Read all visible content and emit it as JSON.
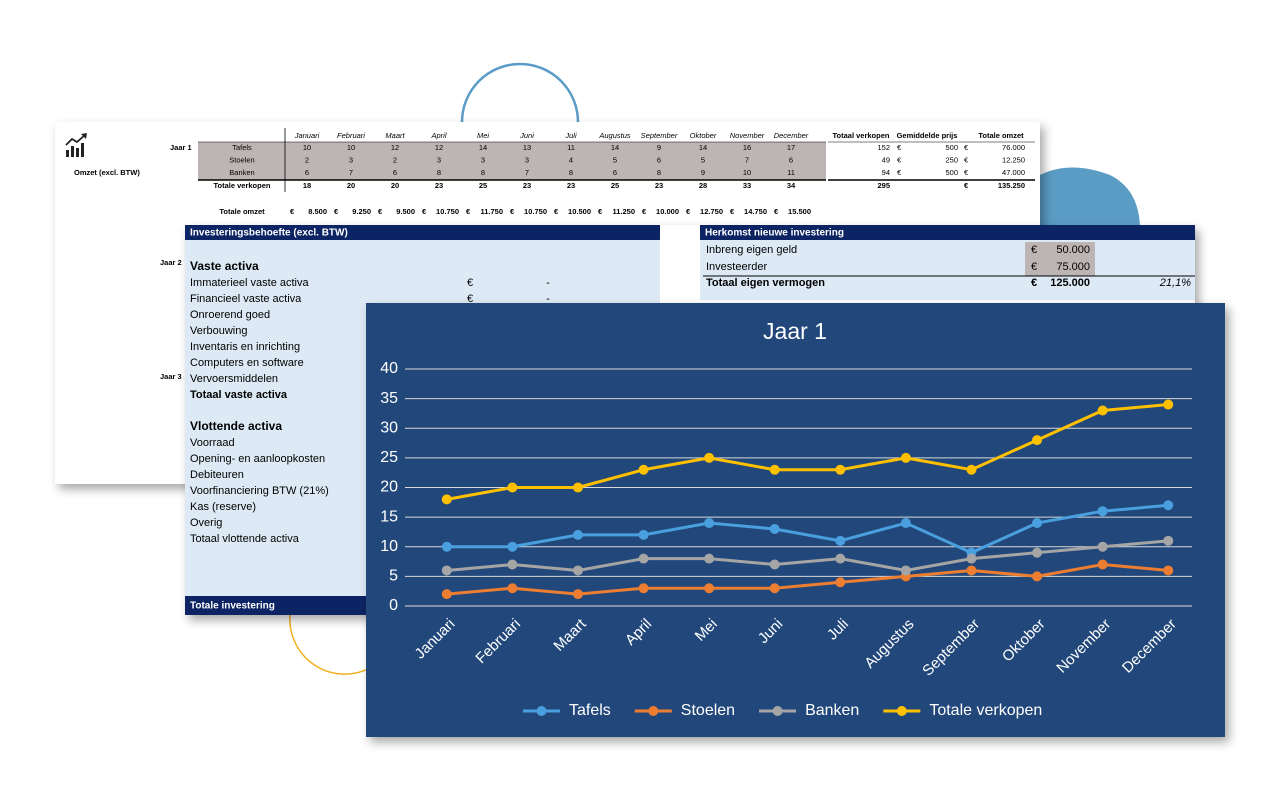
{
  "currency": "€",
  "sheet": {
    "year": "Jaar 1",
    "section": "Omzet (excl. BTW)",
    "other_years": [
      "Jaar 2",
      "Jaar 3"
    ],
    "revenue_label": "Totale omzet",
    "monthly_revenue": [
      "8.500",
      "9.250",
      "9.500",
      "10.750",
      "11.750",
      "10.750",
      "10.500",
      "11.250",
      "10.000",
      "12.750",
      "14.750",
      "15.500"
    ],
    "summary": {
      "headers": [
        "Totaal verkopen",
        "Gemiddelde prijs",
        "Totale omzet"
      ],
      "rows": [
        [
          "152",
          "500",
          "76.000"
        ],
        [
          "49",
          "250",
          "12.250"
        ],
        [
          "94",
          "500",
          "47.000"
        ]
      ],
      "total": [
        "295",
        "135.250"
      ]
    }
  },
  "investment": {
    "title": "Investeringsbehoefte (excl. BTW)",
    "items": [
      {
        "label": "Vaste activa",
        "section": true
      },
      {
        "label": "Immaterieel vaste activa",
        "amount": "-"
      },
      {
        "label": "Financieel vaste activa",
        "amount": "-"
      },
      {
        "label": "Onroerend goed"
      },
      {
        "label": "Verbouwing"
      },
      {
        "label": "Inventaris en inrichting"
      },
      {
        "label": "Computers en software"
      },
      {
        "label": "Vervoersmiddelen"
      },
      {
        "label": "Totaal vaste activa",
        "bold": true
      },
      {
        "label": "Vlottende activa",
        "section": true
      },
      {
        "label": "Voorraad"
      },
      {
        "label": "Opening- en aanloopkosten"
      },
      {
        "label": "Debiteuren"
      },
      {
        "label": "Voorfinanciering BTW (21%)"
      },
      {
        "label": "Kas (reserve)"
      },
      {
        "label": "Overig"
      },
      {
        "label": "Totaal vlottende activa"
      }
    ],
    "footer": "Totale investering"
  },
  "funding": {
    "title": "Herkomst nieuwe investering",
    "rows": [
      {
        "label": "Inbreng eigen geld",
        "amount": "50.000"
      },
      {
        "label": "Investeerder",
        "amount": "75.000"
      }
    ],
    "total": {
      "label": "Totaal eigen vermogen",
      "amount": "125.000",
      "share": "21,1%"
    }
  },
  "chart_data": {
    "type": "line",
    "title": "Jaar 1",
    "categories": [
      "Januari",
      "Februari",
      "Maart",
      "April",
      "Mei",
      "Juni",
      "Juli",
      "Augustus",
      "September",
      "Oktober",
      "November",
      "December"
    ],
    "series": [
      {
        "name": "Tafels",
        "color": "#4a9fde",
        "values": [
          10,
          10,
          12,
          12,
          14,
          13,
          11,
          14,
          9,
          14,
          16,
          17
        ]
      },
      {
        "name": "Stoelen",
        "color": "#ed7d31",
        "values": [
          2,
          3,
          2,
          3,
          3,
          3,
          4,
          5,
          6,
          5,
          7,
          6
        ]
      },
      {
        "name": "Banken",
        "color": "#a5a5a5",
        "values": [
          6,
          7,
          6,
          8,
          8,
          7,
          8,
          6,
          8,
          9,
          10,
          11
        ]
      },
      {
        "name": "Totale verkopen",
        "color": "#ffc000",
        "values": [
          18,
          20,
          20,
          23,
          25,
          23,
          23,
          25,
          23,
          28,
          33,
          34
        ]
      }
    ],
    "ylim": [
      0,
      40
    ],
    "yticks": [
      0,
      5,
      10,
      15,
      20,
      25,
      30,
      35,
      40
    ],
    "grid": true,
    "legend": "bottom"
  }
}
